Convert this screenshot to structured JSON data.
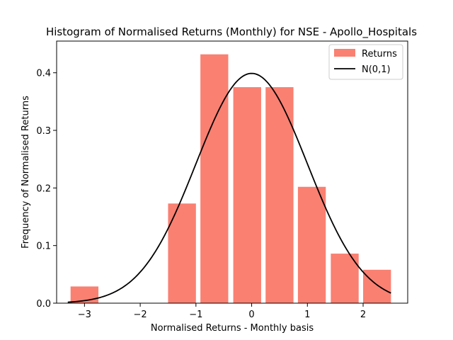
{
  "chart_data": {
    "type": "bar",
    "title": "Histogram of Normalised Returns (Monthly) for NSE - Apollo_Hospitals",
    "xlabel": "Normalised Returns - Monthly basis",
    "ylabel": "Frequency of Normalised Returns",
    "xlim": [
      -3.5,
      2.8
    ],
    "ylim": [
      0,
      0.455
    ],
    "xticks": [
      -3,
      -2,
      -1,
      0,
      1,
      2
    ],
    "yticks": [
      0.0,
      0.1,
      0.2,
      0.3,
      0.4
    ],
    "bar_width": 0.5,
    "bars": [
      {
        "x": -3.0,
        "value": 0.029
      },
      {
        "x": -2.42,
        "value": 0.0
      },
      {
        "x": -1.83,
        "value": 0.0
      },
      {
        "x": -1.25,
        "value": 0.173
      },
      {
        "x": -0.67,
        "value": 0.432
      },
      {
        "x": -0.08,
        "value": 0.375
      },
      {
        "x": 0.5,
        "value": 0.375
      },
      {
        "x": 1.08,
        "value": 0.202
      },
      {
        "x": 1.67,
        "value": 0.086
      },
      {
        "x": 2.25,
        "value": 0.058
      }
    ],
    "curve": {
      "name": "N(0,1)",
      "x_start": -3.3,
      "x_end": 2.5
    },
    "legend": {
      "placement": "top-right",
      "entries": [
        "Returns",
        "N(0,1)"
      ]
    },
    "colors": {
      "bars": "#fa8072",
      "curve": "#000000",
      "axes": "#000000"
    },
    "grid": false
  }
}
